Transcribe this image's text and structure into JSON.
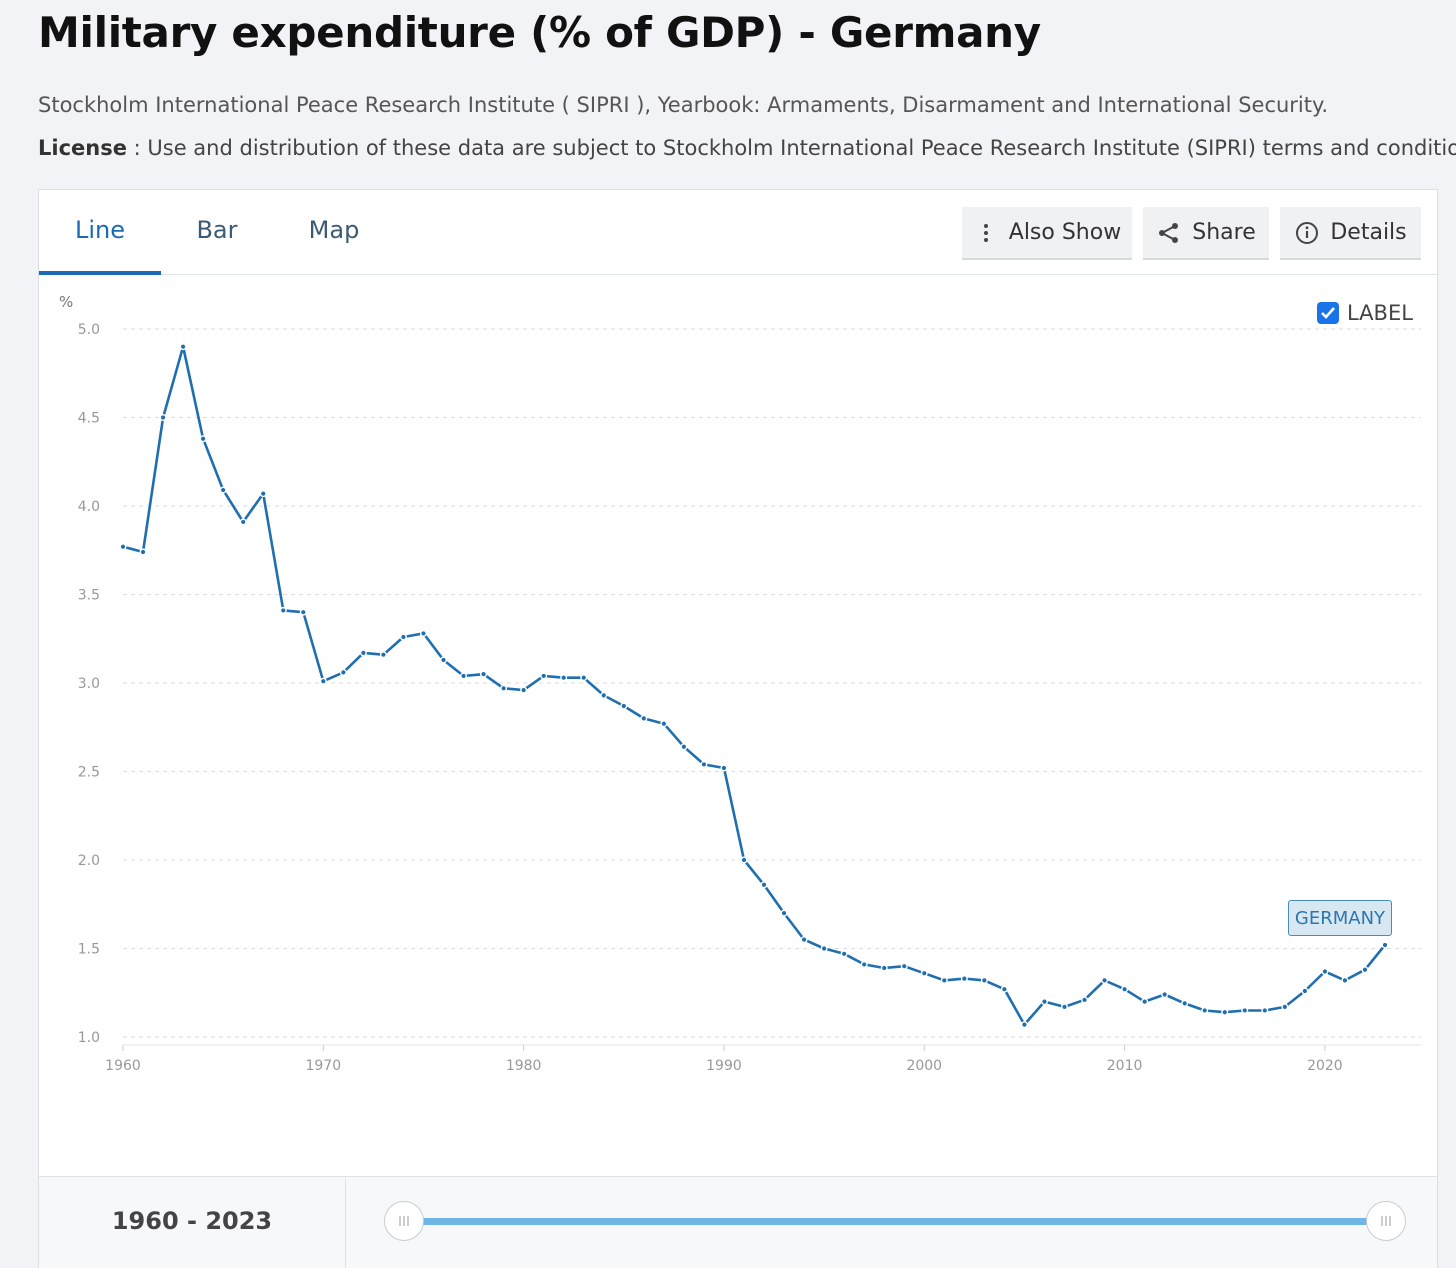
{
  "page": {
    "title": "Military expenditure (% of GDP) - Germany",
    "source": "Stockholm International Peace Research Institute ( SIPRI ), Yearbook: Armaments, Disarmament and International Security.",
    "license_label": "License",
    "license_text": " : Use and distribution of these data are subject to Stockholm International Peace Research Institute (SIPRI) terms and conditions."
  },
  "tabs": [
    {
      "label": "Line",
      "active": true
    },
    {
      "label": "Bar",
      "active": false
    },
    {
      "label": "Map",
      "active": false
    }
  ],
  "toolbar": {
    "also_show": "Also Show",
    "share": "Share",
    "details": "Details"
  },
  "label_toggle": {
    "text": "LABEL",
    "checked": true
  },
  "range": {
    "start": "1960",
    "end": "2023"
  },
  "colors": {
    "line": "#1f6fb0",
    "accent": "#1b6ab5",
    "slider": "#6fb6e6"
  },
  "icons": {
    "also_show": "vertical-dots-icon",
    "share": "share-icon",
    "details": "info-icon",
    "checkbox": "check-icon",
    "slider": "grip-icon"
  },
  "chart_data": {
    "type": "line",
    "title": "Military expenditure (% of GDP) - Germany",
    "ylabel": "%",
    "xlabel": "",
    "xlim": [
      1960,
      2023
    ],
    "ylim": [
      1.0,
      5.0
    ],
    "yticks": [
      "1.0",
      "1.5",
      "2.0",
      "2.5",
      "3.0",
      "3.5",
      "4.0",
      "4.5",
      "5.0"
    ],
    "xticks": [
      "1960",
      "1970",
      "1980",
      "1990",
      "2000",
      "2010",
      "2020"
    ],
    "grid": true,
    "series": [
      {
        "name": "GERMANY",
        "x": [
          1960,
          1961,
          1962,
          1963,
          1964,
          1965,
          1966,
          1967,
          1968,
          1969,
          1970,
          1971,
          1972,
          1973,
          1974,
          1975,
          1976,
          1977,
          1978,
          1979,
          1980,
          1981,
          1982,
          1983,
          1984,
          1985,
          1986,
          1987,
          1988,
          1989,
          1990,
          1991,
          1992,
          1993,
          1994,
          1995,
          1996,
          1997,
          1998,
          1999,
          2000,
          2001,
          2002,
          2003,
          2004,
          2005,
          2006,
          2007,
          2008,
          2009,
          2010,
          2011,
          2012,
          2013,
          2014,
          2015,
          2016,
          2017,
          2018,
          2019,
          2020,
          2021,
          2022,
          2023
        ],
        "values": [
          3.77,
          3.74,
          4.5,
          4.9,
          4.38,
          4.09,
          3.91,
          4.07,
          3.41,
          3.4,
          3.01,
          3.06,
          3.17,
          3.16,
          3.26,
          3.28,
          3.13,
          3.04,
          3.05,
          2.97,
          2.96,
          3.04,
          3.03,
          3.03,
          2.93,
          2.87,
          2.8,
          2.77,
          2.64,
          2.54,
          2.52,
          2.0,
          1.86,
          1.7,
          1.55,
          1.5,
          1.47,
          1.41,
          1.39,
          1.4,
          1.36,
          1.32,
          1.33,
          1.32,
          1.27,
          1.07,
          1.2,
          1.17,
          1.21,
          1.32,
          1.27,
          1.2,
          1.24,
          1.19,
          1.15,
          1.14,
          1.15,
          1.15,
          1.17,
          1.26,
          1.37,
          1.32,
          1.38,
          1.52
        ]
      }
    ]
  }
}
